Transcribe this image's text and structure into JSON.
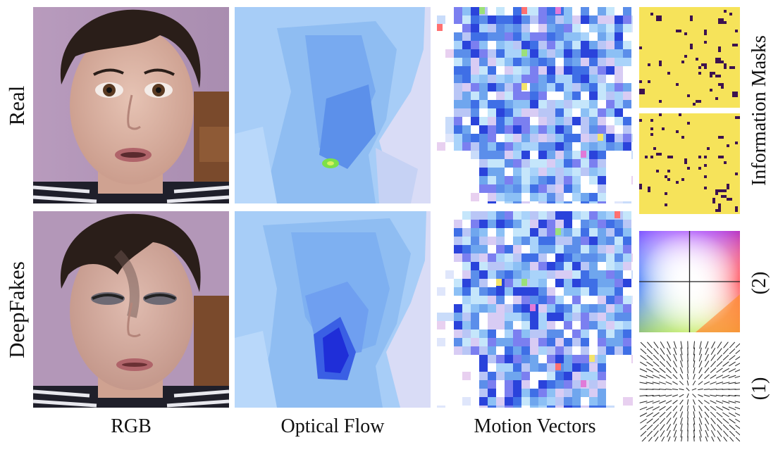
{
  "rows": [
    "Real",
    "DeepFakes"
  ],
  "columns": [
    "RGB",
    "Optical Flow",
    "Motion Vectors"
  ],
  "side_labels": {
    "masks": "Information Masks",
    "color_wheel": "(2)",
    "vector_field": "(1)"
  },
  "colors": {
    "mask_background": "#f6e35a",
    "mask_dots": "#3d124f",
    "flow_light": "#cfe4fb",
    "flow_mid": "#8fbdf2",
    "flow_dark": "#4f86e8",
    "flow_deep": "#2030d8",
    "wall": "#b397b8",
    "skin": "#d8b3a4",
    "hair": "#2a1e19"
  },
  "icons": [
    "face-photo",
    "optical-flow-map",
    "motion-vector-map",
    "mask-map",
    "color-wheel",
    "arrow-field"
  ]
}
